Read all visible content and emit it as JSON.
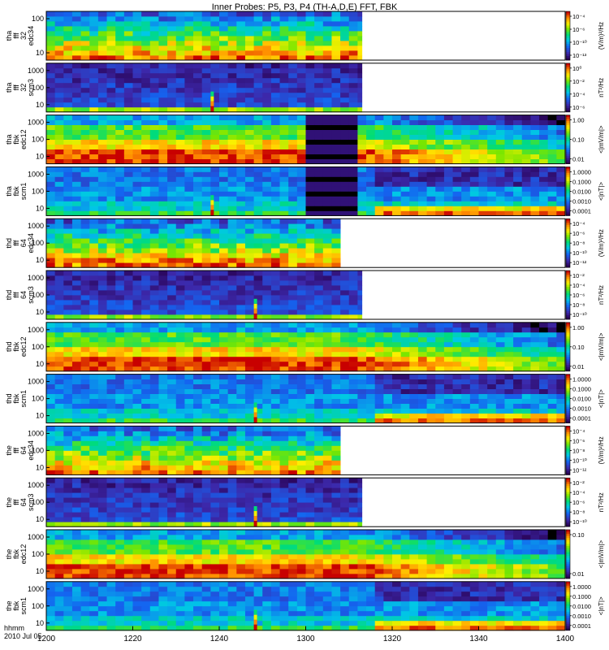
{
  "figure": {
    "title": "Inner Probes: P5, P3, P4 (TH-A,D,E) FFT, FBK",
    "footer": {
      "line1": "hhmm",
      "line2": "2010 Jul 05"
    }
  },
  "chart_data": {
    "type": "heatmap",
    "title": "Inner Probes: P5, P3, P4 (TH-A,D,E) FFT, FBK",
    "x_ticks": [
      "1200",
      "1220",
      "1240",
      "1300",
      "1320",
      "1340",
      "1400"
    ],
    "xlim": [
      "12:00",
      "14:00"
    ],
    "grid": false,
    "legend": "colorbars right of each panel",
    "panels": [
      {
        "ylabel": [
          "tha",
          "fff",
          "32",
          "edc34"
        ],
        "yscale": "log",
        "yticks": [
          "100",
          "10"
        ],
        "colorbar_ticks": [
          "10⁻⁴",
          "10⁻⁶",
          "10⁻¹⁰",
          "10⁻¹³"
        ],
        "colorbar_label": "(V/m)²/Hz",
        "data_end": "13:13",
        "pattern": "fff_e"
      },
      {
        "ylabel": [
          "tha",
          "fff",
          "32",
          "scm3"
        ],
        "yscale": "log",
        "yticks": [
          "1000",
          "100",
          "10"
        ],
        "colorbar_ticks": [
          "10⁰",
          "10⁻²",
          "10⁻⁴",
          "10⁻⁶"
        ],
        "colorbar_label": "nT²/Hz",
        "data_end": "13:13",
        "burst_at": "12:38",
        "pattern": "fff_b"
      },
      {
        "ylabel": [
          "tha",
          "fbk",
          "edc12"
        ],
        "yscale": "log",
        "yticks": [
          "1000",
          "100",
          "10"
        ],
        "colorbar_ticks": [
          "1.00",
          "0.10",
          "0.01"
        ],
        "colorbar_label": "<|mV/m|>",
        "data_end": "14:00",
        "gap": [
          "13:00",
          "13:12"
        ],
        "pattern": "fbk_e"
      },
      {
        "ylabel": [
          "tha",
          "fbk",
          "scm1"
        ],
        "yscale": "log",
        "yticks": [
          "1000",
          "100",
          "10"
        ],
        "colorbar_ticks": [
          "1.0000",
          "0.1000",
          "0.0100",
          "0.0010",
          "0.0001"
        ],
        "colorbar_label": "<|nT|>",
        "data_end": "14:00",
        "burst_at": "12:38",
        "gap": [
          "13:00",
          "13:12"
        ],
        "pattern": "fbk_b"
      },
      {
        "ylabel": [
          "thd",
          "fff",
          "64",
          "edc34"
        ],
        "yscale": "log",
        "yticks": [
          "1000",
          "100",
          "10"
        ],
        "colorbar_ticks": [
          "10⁻⁴",
          "10⁻⁶",
          "10⁻⁸",
          "10⁻¹⁰",
          "10⁻¹²"
        ],
        "colorbar_label": "(V/m)²/Hz",
        "data_end": "13:08",
        "pattern": "fff_e"
      },
      {
        "ylabel": [
          "thd",
          "fff",
          "64",
          "scm3"
        ],
        "yscale": "log",
        "yticks": [
          "1000",
          "100",
          "10"
        ],
        "colorbar_ticks": [
          "10⁻²",
          "10⁻⁴",
          "10⁻⁶",
          "10⁻⁸",
          "10⁻¹⁰"
        ],
        "colorbar_label": "nT²/Hz",
        "data_end": "13:13",
        "burst_at": "12:48",
        "pattern": "fff_b"
      },
      {
        "ylabel": [
          "thd",
          "fbk",
          "edc12"
        ],
        "yscale": "log",
        "yticks": [
          "1000",
          "100",
          "10"
        ],
        "colorbar_ticks": [
          "1.00",
          "0.10",
          "0.01"
        ],
        "colorbar_label": "<|mV/m|>",
        "data_end": "14:00",
        "pattern": "fbk_e"
      },
      {
        "ylabel": [
          "thd",
          "fbk",
          "scm1"
        ],
        "yscale": "log",
        "yticks": [
          "1000",
          "100",
          "10"
        ],
        "colorbar_ticks": [
          "1.0000",
          "0.1000",
          "0.0100",
          "0.0010",
          "0.0001"
        ],
        "colorbar_label": "<|nT|>",
        "data_end": "14:00",
        "burst_at": "12:48",
        "pattern": "fbk_b"
      },
      {
        "ylabel": [
          "the",
          "fff",
          "64",
          "edc34"
        ],
        "yscale": "log",
        "yticks": [
          "1000",
          "100",
          "10"
        ],
        "colorbar_ticks": [
          "10⁻⁴",
          "10⁻⁶",
          "10⁻⁸",
          "10⁻¹⁰",
          "10⁻¹²"
        ],
        "colorbar_label": "(V/m)²/Hz",
        "data_end": "13:08",
        "pattern": "fff_e"
      },
      {
        "ylabel": [
          "the",
          "fff",
          "64",
          "scm3"
        ],
        "yscale": "log",
        "yticks": [
          "1000",
          "100",
          "10"
        ],
        "colorbar_ticks": [
          "10⁻²",
          "10⁻⁴",
          "10⁻⁶",
          "10⁻⁸",
          "10⁻¹⁰"
        ],
        "colorbar_label": "nT²/Hz",
        "data_end": "13:13",
        "burst_at": "12:48",
        "pattern": "fff_b"
      },
      {
        "ylabel": [
          "the",
          "fbk",
          "edc12"
        ],
        "yscale": "log",
        "yticks": [
          "1000",
          "100",
          "10"
        ],
        "colorbar_ticks": [
          "0.10",
          "0.01"
        ],
        "colorbar_label": "<|mV/m|>",
        "data_end": "14:00",
        "pattern": "fbk_e"
      },
      {
        "ylabel": [
          "the",
          "fbk",
          "scm1"
        ],
        "yscale": "log",
        "yticks": [
          "1000",
          "100",
          "10"
        ],
        "colorbar_ticks": [
          "1.0000",
          "0.1000",
          "0.0100",
          "0.0010",
          "0.0001"
        ],
        "colorbar_label": "<|nT|>",
        "data_end": "14:00",
        "burst_at": "12:48",
        "pattern": "fbk_b"
      }
    ]
  }
}
